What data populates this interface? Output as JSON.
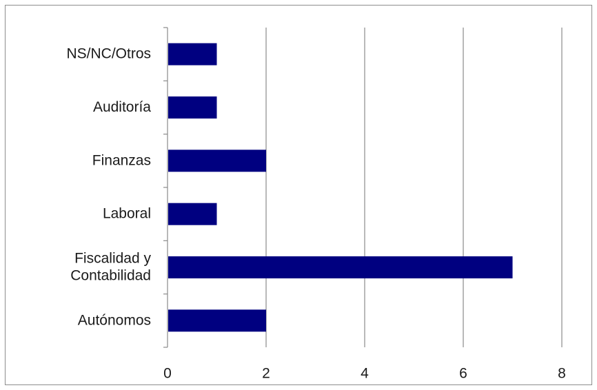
{
  "chart_data": {
    "type": "bar",
    "orientation": "horizontal",
    "categories": [
      "NS/NC/Otros",
      "Auditoría",
      "Finanzas",
      "Laboral",
      "Fiscalidad y Contabilidad",
      "Autónomos"
    ],
    "category_lines": [
      [
        "NS/NC/Otros"
      ],
      [
        "Auditoría"
      ],
      [
        "Finanzas"
      ],
      [
        "Laboral"
      ],
      [
        "Fiscalidad y",
        "Contabilidad"
      ],
      [
        "Autónomos"
      ]
    ],
    "values": [
      1,
      1,
      2,
      1,
      7,
      2
    ],
    "xlim": [
      0,
      8
    ],
    "xticks": [
      0,
      2,
      4,
      6,
      8
    ],
    "xtick_labels": [
      "0",
      "2",
      "4",
      "6",
      "8"
    ],
    "title": "",
    "xlabel": "",
    "ylabel": "",
    "grid": "vertical",
    "legend": "none",
    "bar_color": "#000080"
  }
}
